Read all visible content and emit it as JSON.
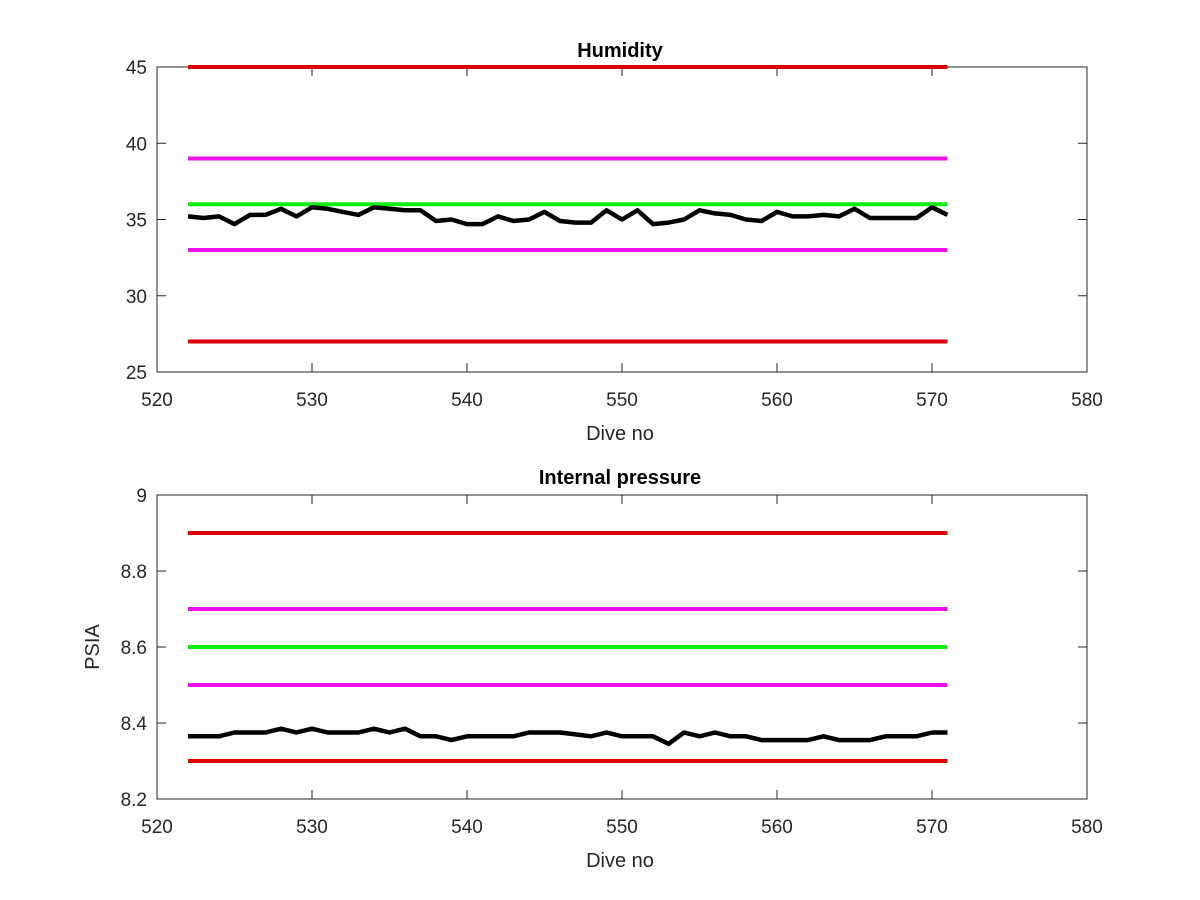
{
  "chart_data": [
    {
      "type": "line",
      "title": "Humidity",
      "xlabel": "Dive no",
      "ylabel": "",
      "xlim": [
        520,
        580
      ],
      "ylim": [
        25,
        45
      ],
      "xticks": [
        "520",
        "530",
        "540",
        "550",
        "560",
        "570",
        "580"
      ],
      "yticks": [
        "25",
        "30",
        "35",
        "40",
        "45"
      ],
      "grid": false,
      "legend": "none",
      "series": [
        {
          "role": "upper-red",
          "color": "#dd0000",
          "x": [
            522,
            571
          ],
          "y": [
            45,
            45
          ]
        },
        {
          "role": "upper-magenta",
          "color": "#ee11ee",
          "x": [
            522,
            571
          ],
          "y": [
            39,
            39
          ]
        },
        {
          "role": "green",
          "color": "#11ee11",
          "x": [
            522,
            571
          ],
          "y": [
            36,
            36
          ]
        },
        {
          "role": "lower-magenta",
          "color": "#ee11ee",
          "x": [
            522,
            571
          ],
          "y": [
            33,
            33
          ]
        },
        {
          "role": "lower-red",
          "color": "#dd0000",
          "x": [
            522,
            571
          ],
          "y": [
            27,
            27
          ]
        },
        {
          "role": "measured",
          "color": "#000000",
          "x": [
            522,
            523,
            524,
            525,
            526,
            527,
            528,
            529,
            530,
            531,
            532,
            533,
            534,
            535,
            536,
            537,
            538,
            539,
            540,
            541,
            542,
            543,
            544,
            545,
            546,
            547,
            548,
            549,
            550,
            551,
            552,
            553,
            554,
            555,
            556,
            557,
            558,
            559,
            560,
            561,
            562,
            563,
            564,
            565,
            566,
            567,
            568,
            569,
            570,
            571
          ],
          "y": [
            35.2,
            35.1,
            35.2,
            34.7,
            35.3,
            35.3,
            35.7,
            35.2,
            35.8,
            35.7,
            35.5,
            35.3,
            35.8,
            35.7,
            35.6,
            35.6,
            34.9,
            35.0,
            34.7,
            34.7,
            35.2,
            34.9,
            35.0,
            35.5,
            34.9,
            34.8,
            34.8,
            35.6,
            35.0,
            35.6,
            34.7,
            34.8,
            35.0,
            35.6,
            35.4,
            35.3,
            35.0,
            34.9,
            35.5,
            35.2,
            35.2,
            35.3,
            35.2,
            35.7,
            35.1,
            35.1,
            35.1,
            35.1,
            35.8,
            35.3
          ]
        }
      ]
    },
    {
      "type": "line",
      "title": "Internal pressure",
      "xlabel": "Dive no",
      "ylabel": "PSIA",
      "xlim": [
        520,
        580
      ],
      "ylim": [
        8.2,
        9
      ],
      "xticks": [
        "520",
        "530",
        "540",
        "550",
        "560",
        "570",
        "580"
      ],
      "yticks": [
        "8.2",
        "8.4",
        "8.6",
        "8.8",
        "9"
      ],
      "grid": false,
      "legend": "none",
      "series": [
        {
          "role": "upper-red",
          "color": "#dd0000",
          "x": [
            522,
            571
          ],
          "y": [
            8.9,
            8.9
          ]
        },
        {
          "role": "upper-magenta",
          "color": "#ee11ee",
          "x": [
            522,
            571
          ],
          "y": [
            8.7,
            8.7
          ]
        },
        {
          "role": "green",
          "color": "#11ee11",
          "x": [
            522,
            571
          ],
          "y": [
            8.6,
            8.6
          ]
        },
        {
          "role": "lower-magenta",
          "color": "#ee11ee",
          "x": [
            522,
            571
          ],
          "y": [
            8.5,
            8.5
          ]
        },
        {
          "role": "lower-red",
          "color": "#dd0000",
          "x": [
            522,
            571
          ],
          "y": [
            8.3,
            8.3
          ]
        },
        {
          "role": "measured",
          "color": "#000000",
          "x": [
            522,
            523,
            524,
            525,
            526,
            527,
            528,
            529,
            530,
            531,
            532,
            533,
            534,
            535,
            536,
            537,
            538,
            539,
            540,
            541,
            542,
            543,
            544,
            545,
            546,
            547,
            548,
            549,
            550,
            551,
            552,
            553,
            554,
            555,
            556,
            557,
            558,
            559,
            560,
            561,
            562,
            563,
            564,
            565,
            566,
            567,
            568,
            569,
            570,
            571
          ],
          "y": [
            8.365,
            8.365,
            8.365,
            8.375,
            8.375,
            8.375,
            8.385,
            8.375,
            8.385,
            8.375,
            8.375,
            8.375,
            8.385,
            8.375,
            8.385,
            8.365,
            8.365,
            8.355,
            8.365,
            8.365,
            8.365,
            8.365,
            8.375,
            8.375,
            8.375,
            8.37,
            8.365,
            8.375,
            8.365,
            8.365,
            8.365,
            8.345,
            8.375,
            8.365,
            8.375,
            8.365,
            8.365,
            8.355,
            8.355,
            8.355,
            8.355,
            8.365,
            8.355,
            8.355,
            8.355,
            8.365,
            8.365,
            8.365,
            8.375,
            8.375
          ]
        }
      ]
    }
  ]
}
